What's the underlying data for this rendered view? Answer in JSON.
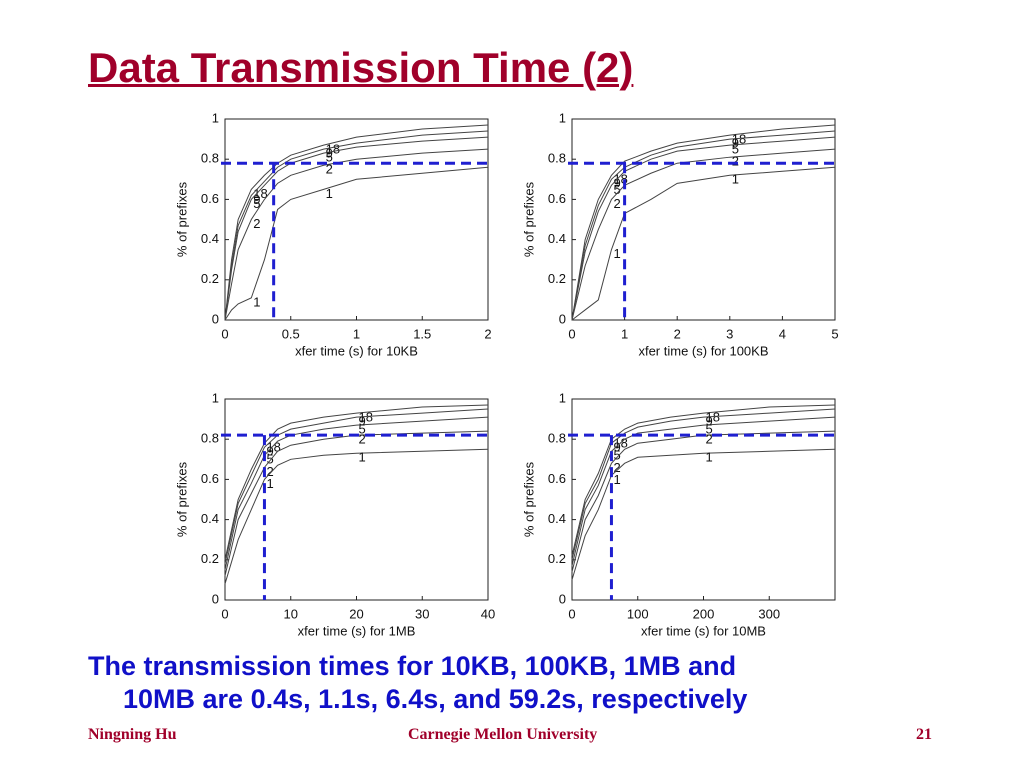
{
  "slide": {
    "title": "Data Transmission Time (2)",
    "body": [
      "The transmission times for 10KB, 100KB, 1MB and",
      "10MB are 0.4s, 1.1s, 6.4s, and 59.2s, respectively"
    ],
    "footer": {
      "left": "Ningning Hu",
      "center": "Carnegie Mellon University",
      "right": "21"
    }
  },
  "chart_data": [
    {
      "type": "line",
      "xlabel": "xfer time (s) for 10KB",
      "ylabel": "% of prefixes",
      "x": [
        0,
        0.05,
        0.1,
        0.2,
        0.3,
        0.4,
        0.5,
        0.75,
        1,
        1.5,
        2
      ],
      "xlim": [
        0,
        2
      ],
      "xticks": [
        0,
        0.5,
        1,
        1.5,
        2
      ],
      "ylim": [
        0,
        1
      ],
      "yticks": [
        0,
        0.2,
        0.4,
        0.6,
        0.8,
        1
      ],
      "series": [
        {
          "name": "18",
          "color": "#444444",
          "values": [
            0,
            0.3,
            0.5,
            0.65,
            0.72,
            0.78,
            0.82,
            0.87,
            0.91,
            0.95,
            0.97
          ]
        },
        {
          "name": "9",
          "color": "#444444",
          "values": [
            0,
            0.27,
            0.47,
            0.62,
            0.69,
            0.76,
            0.8,
            0.85,
            0.88,
            0.92,
            0.94
          ]
        },
        {
          "name": "5",
          "color": "#444444",
          "values": [
            0,
            0.25,
            0.44,
            0.6,
            0.67,
            0.74,
            0.78,
            0.83,
            0.86,
            0.89,
            0.91
          ]
        },
        {
          "name": "2",
          "color": "#444444",
          "values": [
            0,
            0.18,
            0.35,
            0.5,
            0.6,
            0.68,
            0.72,
            0.77,
            0.8,
            0.83,
            0.85
          ]
        },
        {
          "name": "1",
          "color": "#444444",
          "values": [
            0,
            0.05,
            0.08,
            0.11,
            0.3,
            0.55,
            0.6,
            0.65,
            0.7,
            0.73,
            0.76
          ]
        }
      ],
      "reference": {
        "x": 0.37,
        "y": 0.78,
        "color": "#1f1fd0"
      }
    },
    {
      "type": "line",
      "xlabel": "xfer time (s) for 100KB",
      "ylabel": "% of prefixes",
      "x": [
        0,
        0.25,
        0.5,
        0.75,
        1,
        1.5,
        2,
        3,
        4,
        5
      ],
      "xlim": [
        0,
        5
      ],
      "xticks": [
        0,
        1,
        2,
        3,
        4,
        5
      ],
      "ylim": [
        0,
        1
      ],
      "yticks": [
        0,
        0.2,
        0.4,
        0.6,
        0.8,
        1
      ],
      "series": [
        {
          "name": "18",
          "color": "#444444",
          "values": [
            0,
            0.4,
            0.6,
            0.72,
            0.79,
            0.84,
            0.88,
            0.92,
            0.95,
            0.97
          ]
        },
        {
          "name": "9",
          "color": "#444444",
          "values": [
            0,
            0.37,
            0.57,
            0.7,
            0.76,
            0.82,
            0.86,
            0.9,
            0.92,
            0.94
          ]
        },
        {
          "name": "5",
          "color": "#444444",
          "values": [
            0,
            0.34,
            0.54,
            0.67,
            0.74,
            0.8,
            0.84,
            0.87,
            0.89,
            0.91
          ]
        },
        {
          "name": "2",
          "color": "#444444",
          "values": [
            0,
            0.27,
            0.45,
            0.6,
            0.67,
            0.73,
            0.78,
            0.81,
            0.83,
            0.85
          ]
        },
        {
          "name": "1",
          "color": "#444444",
          "values": [
            0,
            0.05,
            0.1,
            0.35,
            0.53,
            0.6,
            0.68,
            0.72,
            0.74,
            0.76
          ]
        }
      ],
      "reference": {
        "x": 1,
        "y": 0.78,
        "color": "#1f1fd0"
      }
    },
    {
      "type": "line",
      "xlabel": "xfer time (s) for 1MB",
      "ylabel": "% of prefixes",
      "x": [
        0,
        2,
        4,
        6,
        8,
        10,
        15,
        20,
        30,
        40
      ],
      "xlim": [
        0,
        40
      ],
      "xticks": [
        0,
        10,
        20,
        30,
        40
      ],
      "ylim": [
        0,
        1
      ],
      "yticks": [
        0,
        0.2,
        0.4,
        0.6,
        0.8,
        1
      ],
      "series": [
        {
          "name": "18",
          "color": "#444444",
          "values": [
            0.2,
            0.5,
            0.65,
            0.78,
            0.85,
            0.88,
            0.91,
            0.93,
            0.96,
            0.97
          ]
        },
        {
          "name": "9",
          "color": "#444444",
          "values": [
            0.18,
            0.48,
            0.62,
            0.76,
            0.82,
            0.85,
            0.88,
            0.91,
            0.93,
            0.95
          ]
        },
        {
          "name": "5",
          "color": "#444444",
          "values": [
            0.15,
            0.45,
            0.58,
            0.72,
            0.79,
            0.82,
            0.85,
            0.87,
            0.89,
            0.91
          ]
        },
        {
          "name": "2",
          "color": "#444444",
          "values": [
            0.12,
            0.4,
            0.53,
            0.66,
            0.74,
            0.77,
            0.8,
            0.82,
            0.83,
            0.84
          ]
        },
        {
          "name": "1",
          "color": "#444444",
          "values": [
            0.08,
            0.3,
            0.45,
            0.6,
            0.67,
            0.7,
            0.72,
            0.73,
            0.74,
            0.75
          ]
        }
      ],
      "reference": {
        "x": 6,
        "y": 0.82,
        "color": "#1f1fd0"
      }
    },
    {
      "type": "line",
      "xlabel": "xfer time (s) for 10MB",
      "ylabel": "% of prefixes",
      "x": [
        0,
        20,
        40,
        60,
        80,
        100,
        150,
        200,
        300,
        400
      ],
      "xlim": [
        0,
        400
      ],
      "xticks": [
        0,
        100,
        200,
        300
      ],
      "ylim": [
        0,
        1
      ],
      "yticks": [
        0,
        0.2,
        0.4,
        0.6,
        0.8,
        1
      ],
      "series": [
        {
          "name": "18",
          "color": "#444444",
          "values": [
            0.22,
            0.5,
            0.63,
            0.8,
            0.85,
            0.88,
            0.91,
            0.93,
            0.96,
            0.97
          ]
        },
        {
          "name": "9",
          "color": "#444444",
          "values": [
            0.2,
            0.48,
            0.6,
            0.78,
            0.83,
            0.86,
            0.89,
            0.91,
            0.93,
            0.95
          ]
        },
        {
          "name": "5",
          "color": "#444444",
          "values": [
            0.17,
            0.45,
            0.57,
            0.74,
            0.8,
            0.83,
            0.85,
            0.87,
            0.89,
            0.91
          ]
        },
        {
          "name": "2",
          "color": "#444444",
          "values": [
            0.14,
            0.4,
            0.52,
            0.68,
            0.75,
            0.78,
            0.8,
            0.82,
            0.83,
            0.84
          ]
        },
        {
          "name": "1",
          "color": "#444444",
          "values": [
            0.1,
            0.32,
            0.45,
            0.62,
            0.68,
            0.71,
            0.72,
            0.73,
            0.74,
            0.75
          ]
        }
      ],
      "reference": {
        "x": 60,
        "y": 0.82,
        "color": "#1f1fd0"
      }
    }
  ]
}
